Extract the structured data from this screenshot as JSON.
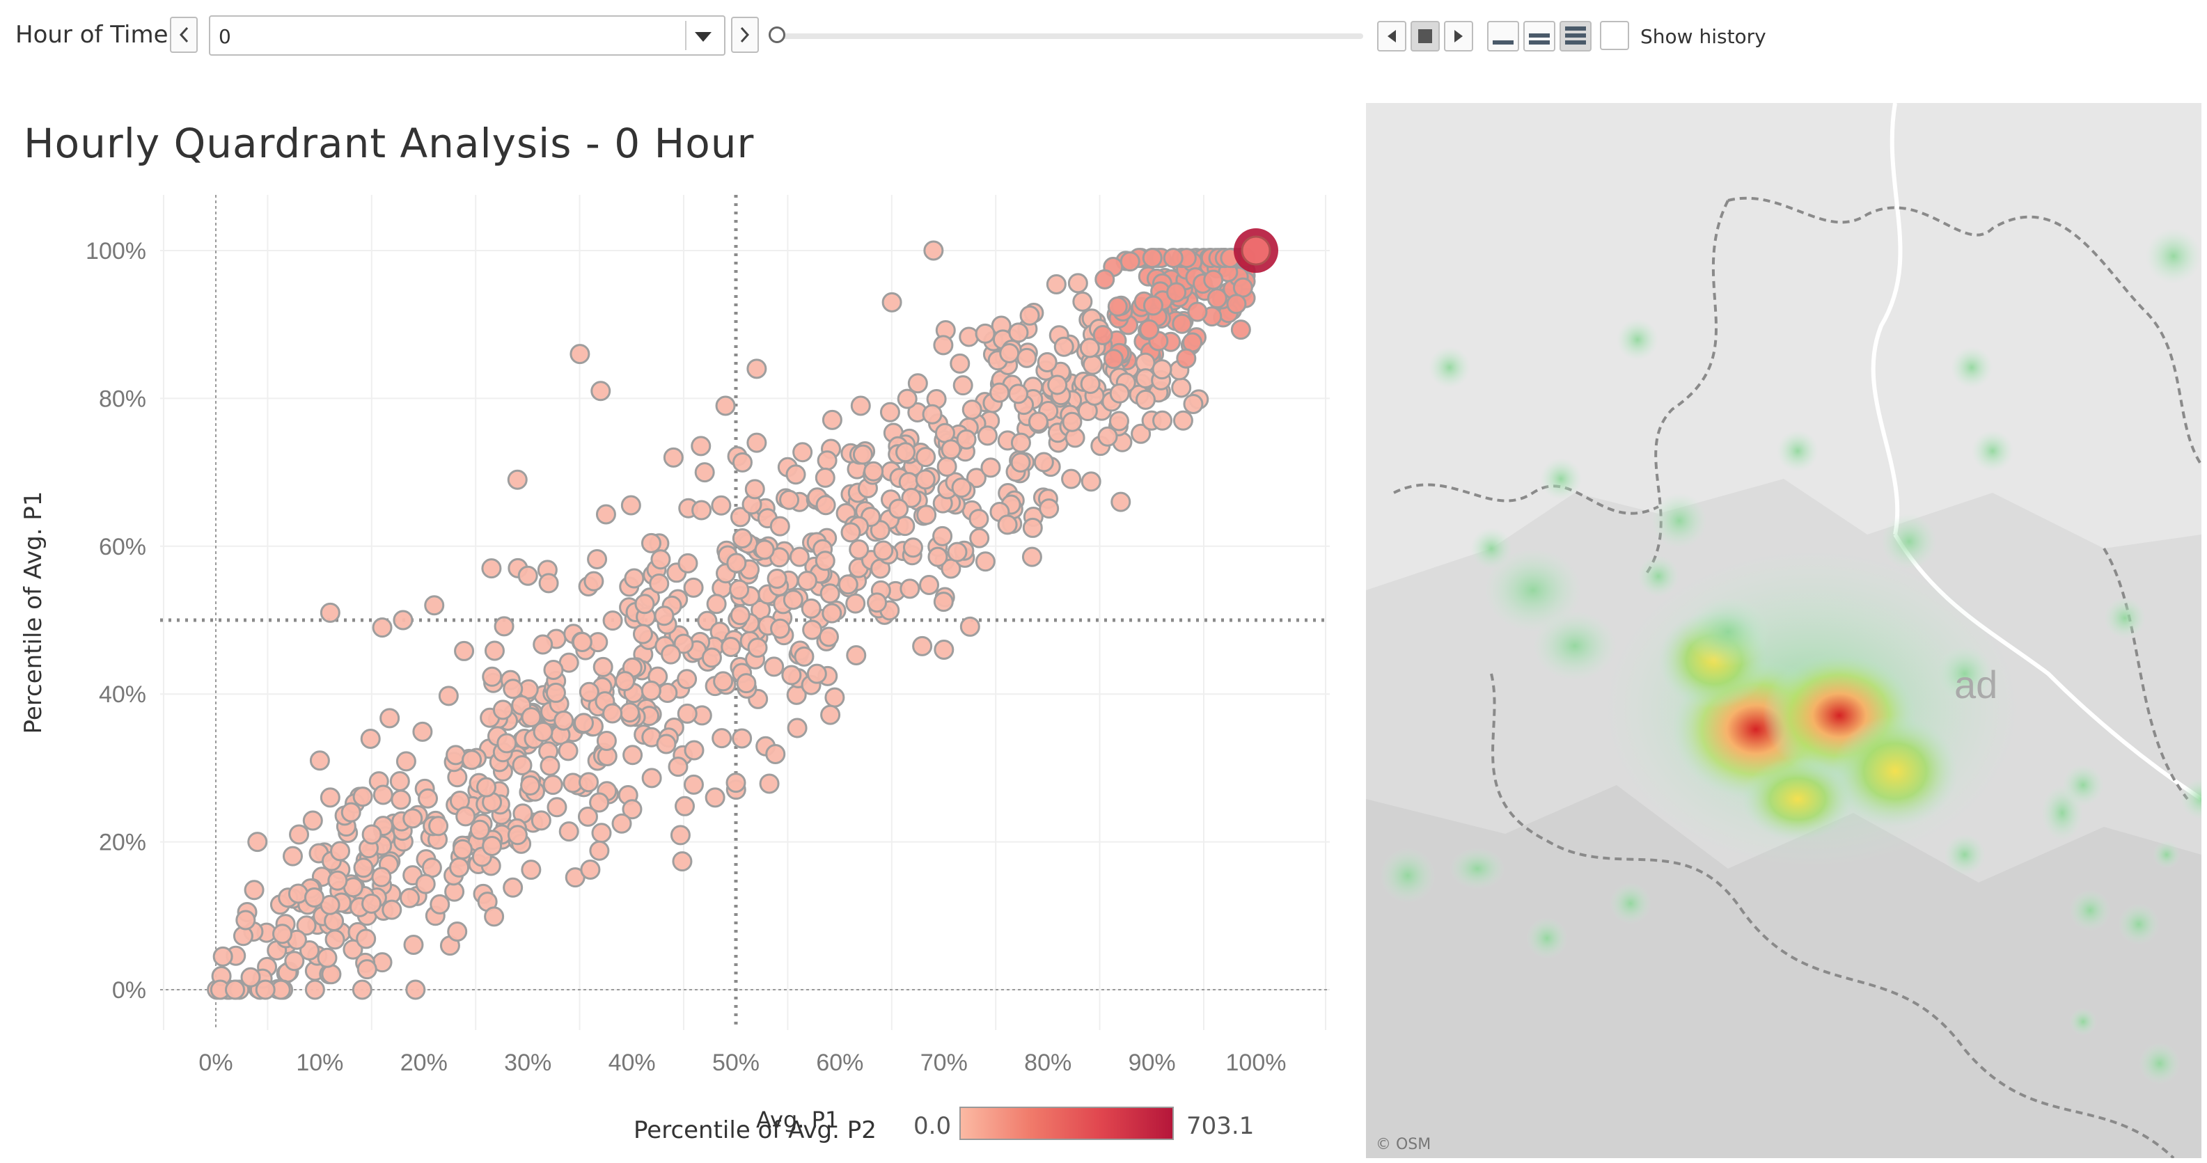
{
  "toolbar": {
    "label": "Hour of Time",
    "selected_value": "0",
    "show_history_label": "Show history"
  },
  "colors": {
    "point_fill": "#f9b9ab",
    "point_stroke": "#9e9e9e",
    "highlight": "#b5163a",
    "legend_start": "#fbb9a3",
    "legend_end": "#b5163a"
  },
  "chart_data": {
    "type": "scatter",
    "title": "Hourly Quardrant Analysis - 0 Hour",
    "xlabel": "Percentile of Avg. P2",
    "xlabel_overlap": "Avg. P1",
    "ylabel": "Percentile of Avg. P1",
    "x_ticks": [
      "0%",
      "10%",
      "20%",
      "30%",
      "40%",
      "50%",
      "60%",
      "70%",
      "80%",
      "90%",
      "100%"
    ],
    "y_ticks": [
      "0%",
      "20%",
      "40%",
      "60%",
      "80%",
      "100%"
    ],
    "xlim": [
      0,
      100
    ],
    "ylim": [
      0,
      100
    ],
    "reference_lines": {
      "x": 50,
      "y": 50
    },
    "color_legend": {
      "min": "0.0",
      "max": "703.1"
    },
    "outliers": [
      {
        "x": 69,
        "y": 100
      },
      {
        "x": 65,
        "y": 93
      },
      {
        "x": 35,
        "y": 86
      },
      {
        "x": 37,
        "y": 81
      },
      {
        "x": 29,
        "y": 69
      },
      {
        "x": 11,
        "y": 51
      },
      {
        "x": 26.5,
        "y": 57
      },
      {
        "x": 30,
        "y": 56
      },
      {
        "x": 32,
        "y": 55
      },
      {
        "x": 52,
        "y": 84
      },
      {
        "x": 49,
        "y": 79
      },
      {
        "x": 70,
        "y": 46
      },
      {
        "x": 87,
        "y": 66
      },
      {
        "x": 91,
        "y": 77
      },
      {
        "x": 93,
        "y": 77
      },
      {
        "x": 62,
        "y": 79
      },
      {
        "x": 44,
        "y": 72
      },
      {
        "x": 47,
        "y": 70
      },
      {
        "x": 52,
        "y": 74
      },
      {
        "x": 50,
        "y": 28
      },
      {
        "x": 48,
        "y": 26
      },
      {
        "x": 15,
        "y": 21
      },
      {
        "x": 8,
        "y": 21
      },
      {
        "x": 4,
        "y": 20
      },
      {
        "x": 10,
        "y": 31
      },
      {
        "x": 11,
        "y": 26
      },
      {
        "x": 13,
        "y": 24
      },
      {
        "x": 16,
        "y": 49
      },
      {
        "x": 18,
        "y": 50
      },
      {
        "x": 21,
        "y": 52
      }
    ],
    "max_point": {
      "x": 100,
      "y": 100,
      "value": "703.1"
    },
    "bulk_points": 900
  },
  "map": {
    "attribution": "© OSM",
    "partial_label": "ad"
  }
}
